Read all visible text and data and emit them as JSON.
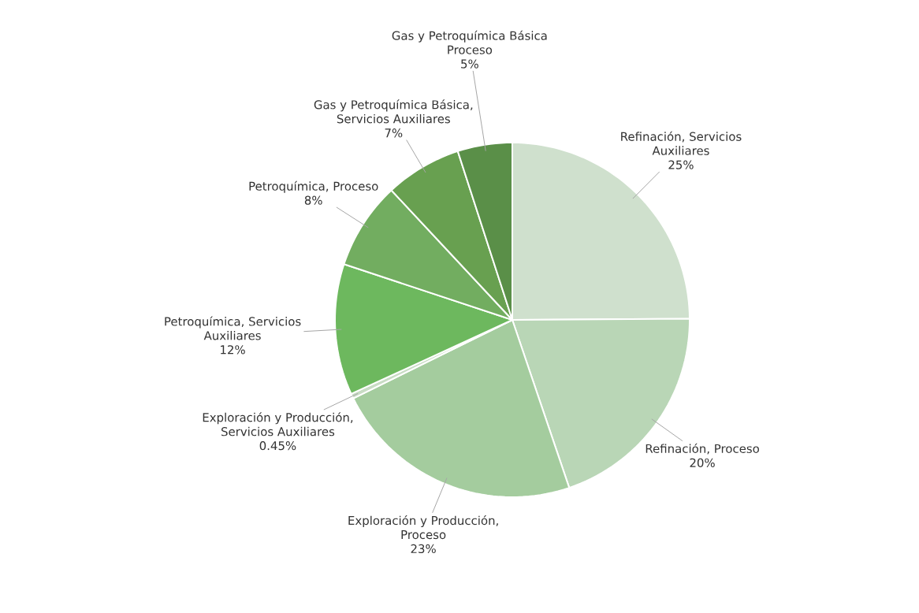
{
  "chart_data": {
    "type": "pie",
    "categories": [
      "Refinación, Servicios Auxiliares",
      "Refinación, Proceso",
      "Exploración y Producción, Proceso",
      "Exploración y Producción, Servicios Auxiliares",
      "Petroquímica, Servicios Auxiliares",
      "Petroquímica, Proceso",
      "Gas y Petroquímica Básica, Servicios Auxiliares",
      "Gas y Petroquímica Básica Proceso"
    ],
    "values": [
      25,
      20,
      23,
      0.45,
      12,
      8,
      7,
      5
    ],
    "value_labels": [
      "25%",
      "20%",
      "23%",
      "0.45%",
      "12%",
      "8%",
      "7%",
      "5%"
    ],
    "colors": [
      "#cfe0cd",
      "#b9d6b6",
      "#a4cc9e",
      "#c8dcc4",
      "#6db85e",
      "#72ad60",
      "#68a050",
      "#5a8f48"
    ]
  }
}
